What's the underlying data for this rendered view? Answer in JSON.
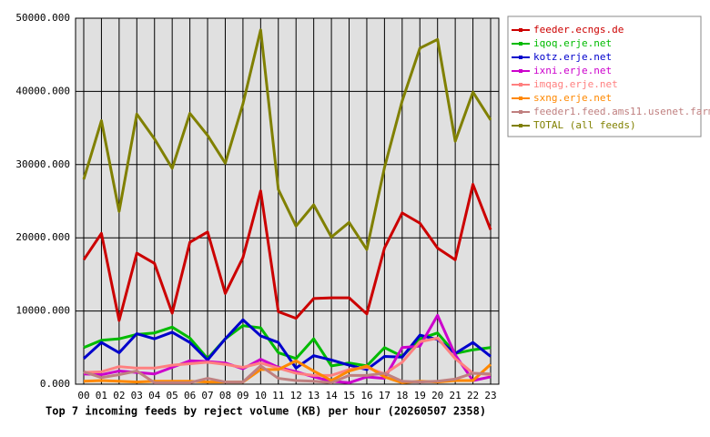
{
  "chart_data": {
    "type": "line",
    "title": "Top 7 incoming feeds by reject volume (KB) per hour (20260507 2358)",
    "categories": [
      "00",
      "01",
      "02",
      "03",
      "04",
      "05",
      "06",
      "07",
      "08",
      "09",
      "10",
      "11",
      "12",
      "13",
      "14",
      "15",
      "16",
      "17",
      "18",
      "19",
      "20",
      "21",
      "22",
      "23"
    ],
    "series": [
      {
        "name": "feeder.ecngs.de",
        "color": "#cc0000",
        "values": [
          17000,
          20600,
          8700,
          17900,
          16500,
          9700,
          19400,
          20800,
          12400,
          17300,
          26400,
          9900,
          9000,
          11700,
          11800,
          11800,
          9600,
          18600,
          23400,
          22000,
          18600,
          17000,
          27300,
          21100
        ]
      },
      {
        "name": "iqoq.erje.net",
        "color": "#00bb00",
        "values": [
          5000,
          6000,
          6200,
          6800,
          7000,
          7800,
          6300,
          3500,
          6200,
          8000,
          7700,
          4300,
          3500,
          6200,
          2500,
          2900,
          2500,
          5000,
          3800,
          6200,
          7000,
          4200,
          4700,
          5000
        ]
      },
      {
        "name": "kotz.erje.net",
        "color": "#0000cc",
        "values": [
          3500,
          5700,
          4300,
          6900,
          6200,
          7100,
          5700,
          3300,
          6200,
          8800,
          6600,
          5700,
          2200,
          3900,
          3300,
          2600,
          2000,
          3800,
          3700,
          6700,
          6100,
          4200,
          5700,
          3800
        ]
      },
      {
        "name": "ixni.erje.net",
        "color": "#cc00cc",
        "values": [
          1400,
          1300,
          1800,
          1600,
          1400,
          2300,
          3200,
          3100,
          2900,
          2100,
          3400,
          2300,
          1700,
          1000,
          400,
          200,
          1000,
          800,
          5000,
          5200,
          9400,
          4000,
          500,
          1000
        ]
      },
      {
        "name": "imqag.erje.net",
        "color": "#ff8080",
        "values": [
          1600,
          1700,
          2400,
          2200,
          2200,
          2600,
          2800,
          3000,
          2700,
          2300,
          2900,
          2200,
          1500,
          1200,
          1200,
          2000,
          2300,
          1400,
          3000,
          5800,
          6300,
          3500,
          1500,
          1300
        ]
      },
      {
        "name": "sxng.erje.net",
        "color": "#ff8800",
        "values": [
          400,
          500,
          400,
          300,
          400,
          400,
          400,
          300,
          300,
          300,
          2000,
          2000,
          3200,
          1800,
          500,
          1800,
          2500,
          1000,
          200,
          400,
          300,
          500,
          500,
          2700
        ]
      },
      {
        "name": "feeder1.feed.ams11.usenet.farm",
        "color": "#c08080",
        "values": [
          1700,
          900,
          1300,
          1800,
          200,
          200,
          200,
          800,
          300,
          300,
          2500,
          800,
          500,
          400,
          200,
          1200,
          1200,
          1500,
          400,
          300,
          400,
          700,
          1500,
          1400
        ]
      },
      {
        "name": "TOTAL (all feeds)",
        "color": "#808000",
        "values": [
          28000,
          36000,
          23600,
          36900,
          33500,
          29500,
          37000,
          34000,
          30200,
          38300,
          48400,
          26600,
          21600,
          24500,
          20100,
          22100,
          18400,
          29600,
          38700,
          45900,
          47100,
          33200,
          39900,
          36100
        ]
      }
    ],
    "ylim": [
      0,
      50000
    ],
    "yticks": [
      {
        "value": 0,
        "label": "0.000"
      },
      {
        "value": 10000,
        "label": "10000.000"
      },
      {
        "value": 20000,
        "label": "20000.000"
      },
      {
        "value": 30000,
        "label": "30000.000"
      },
      {
        "value": 40000,
        "label": "40000.000"
      },
      {
        "value": 50000,
        "label": "50000.000"
      }
    ],
    "grid": true,
    "legend": "right",
    "background": "#e0e0e0"
  }
}
